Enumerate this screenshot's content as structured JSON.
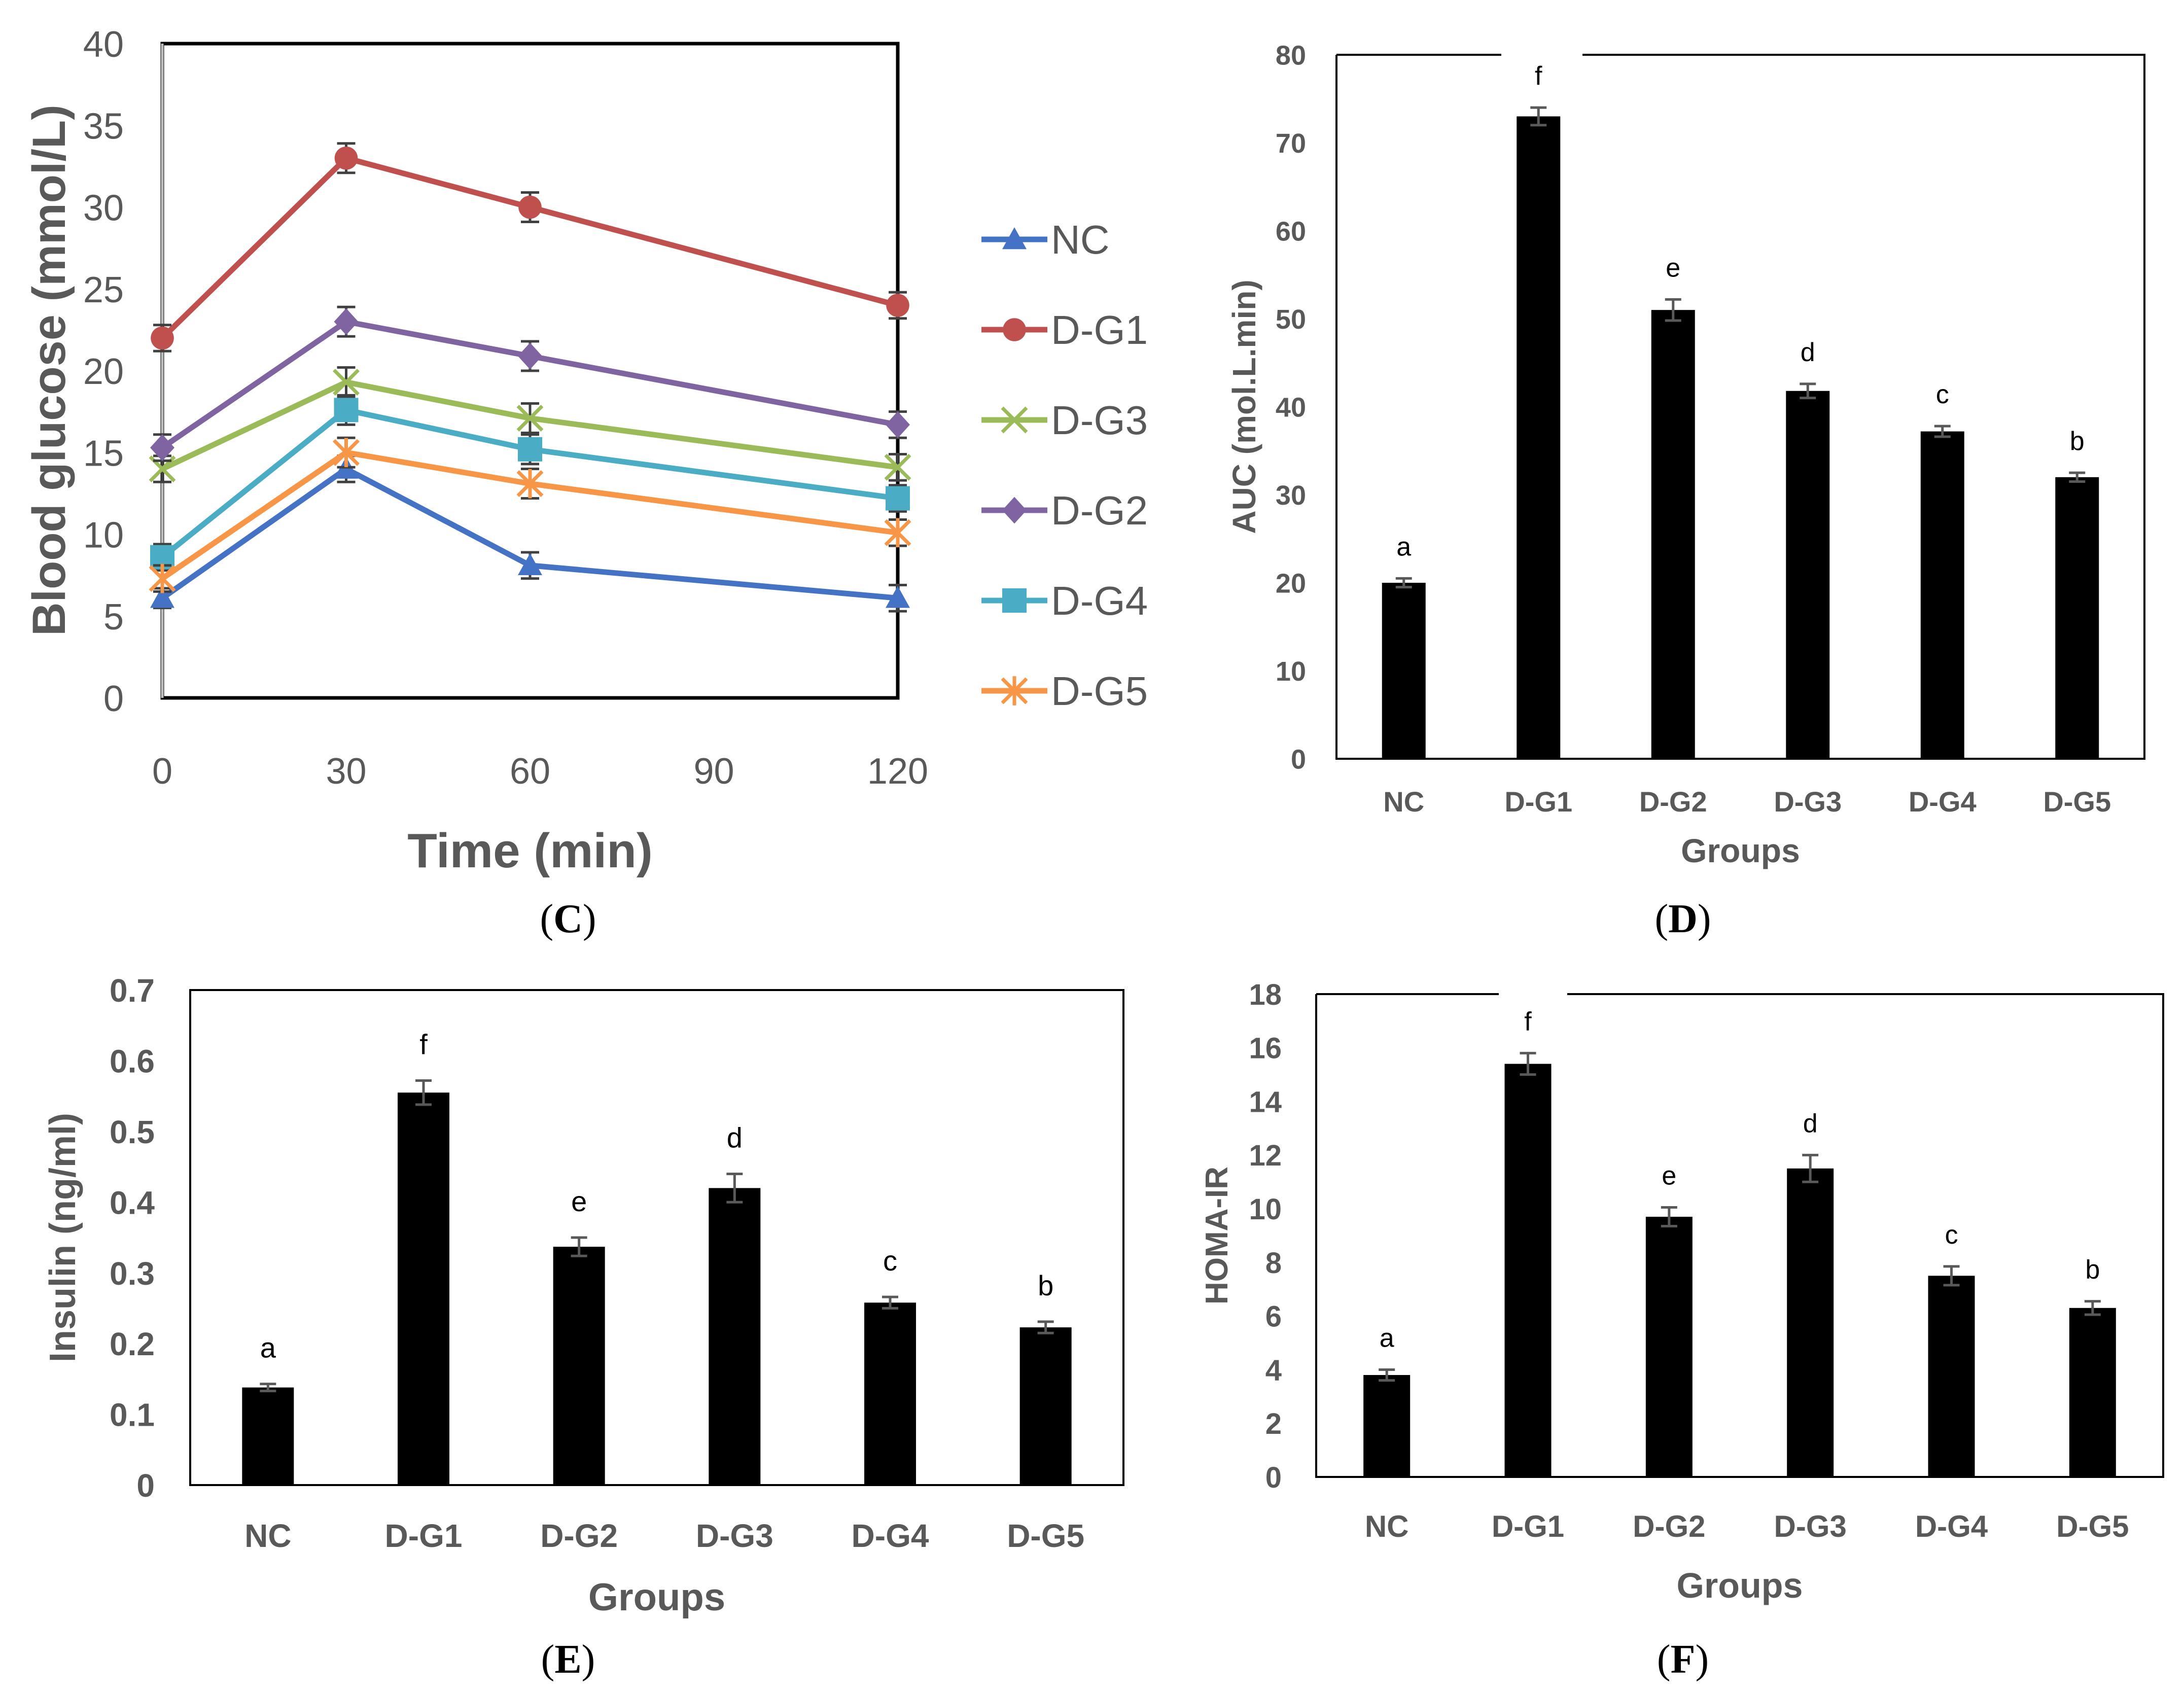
{
  "chart_data": [
    {
      "panel": "C",
      "type": "line",
      "ylabel": "Blood glucose (mmol/L)",
      "xlabel": "Time (min)",
      "x_ticks": [
        0,
        30,
        60,
        90,
        120
      ],
      "y_ticks": [
        0,
        5,
        10,
        15,
        20,
        25,
        30,
        35,
        40
      ],
      "ylim": [
        0,
        40
      ],
      "xlim": [
        0,
        120
      ],
      "x": [
        0,
        30,
        60,
        120
      ],
      "series": [
        {
          "name": "NC",
          "color": "#4472C4",
          "marker": "triangle",
          "values": [
            6.1,
            14.0,
            8.1,
            6.1
          ],
          "errors": [
            0.6,
            0.8,
            0.8,
            0.8
          ]
        },
        {
          "name": "D-G1",
          "color": "#C0504D",
          "marker": "circle",
          "values": [
            22.0,
            33.0,
            30.0,
            24.0
          ],
          "errors": [
            0.8,
            0.9,
            0.9,
            0.8
          ]
        },
        {
          "name": "D-G3",
          "color": "#9BBB59",
          "marker": "x",
          "values": [
            14.0,
            19.3,
            17.1,
            14.1
          ],
          "errors": [
            0.8,
            0.9,
            0.9,
            0.8
          ]
        },
        {
          "name": "D-G2",
          "color": "#8064A2",
          "marker": "diamond",
          "values": [
            15.3,
            23.0,
            20.9,
            16.7
          ],
          "errors": [
            0.8,
            0.9,
            0.9,
            0.8
          ]
        },
        {
          "name": "D-G4",
          "color": "#4BACC6",
          "marker": "square",
          "values": [
            8.6,
            17.6,
            15.2,
            12.2
          ],
          "errors": [
            0.8,
            0.9,
            0.9,
            0.8
          ]
        },
        {
          "name": "D-G5",
          "color": "#F79646",
          "marker": "asterisk",
          "values": [
            7.3,
            15.0,
            13.1,
            10.1
          ],
          "errors": [
            0.8,
            0.9,
            0.9,
            0.8
          ]
        }
      ]
    },
    {
      "panel": "D",
      "type": "bar",
      "ylabel": "AUC (mol.L.min)",
      "xlabel": "Groups",
      "categories": [
        "NC",
        "D-G1",
        "D-G2",
        "D-G3",
        "D-G4",
        "D-G5"
      ],
      "values": [
        20.0,
        73.0,
        51.0,
        41.8,
        37.2,
        32.0
      ],
      "errors": [
        0.5,
        1.0,
        1.2,
        0.8,
        0.6,
        0.5
      ],
      "letters": [
        "a",
        "f",
        "e",
        "d",
        "c",
        "b"
      ],
      "y_ticks": [
        0,
        10,
        20,
        30,
        40,
        50,
        60,
        70,
        80
      ],
      "ylim": [
        0,
        80
      ]
    },
    {
      "panel": "E",
      "type": "bar",
      "ylabel": "Insulin (ng/ml)",
      "xlabel": "Groups",
      "categories": [
        "NC",
        "D-G1",
        "D-G2",
        "D-G3",
        "D-G4",
        "D-G5"
      ],
      "values": [
        0.138,
        0.555,
        0.337,
        0.42,
        0.258,
        0.223
      ],
      "errors": [
        0.005,
        0.017,
        0.013,
        0.02,
        0.008,
        0.008
      ],
      "letters": [
        "a",
        "f",
        "e",
        "d",
        "c",
        "b"
      ],
      "y_ticks": [
        "0",
        "0.1",
        "0.2",
        "0.3",
        "0.4",
        "0.5",
        "0.6",
        "0.7"
      ],
      "ylim": [
        0,
        0.7
      ]
    },
    {
      "panel": "F",
      "type": "bar",
      "ylabel": "HOMA-IR",
      "xlabel": "Groups",
      "categories": [
        "NC",
        "D-G1",
        "D-G2",
        "D-G3",
        "D-G4",
        "D-G5"
      ],
      "values": [
        3.8,
        15.4,
        9.7,
        11.5,
        7.5,
        6.3
      ],
      "errors": [
        0.2,
        0.4,
        0.35,
        0.5,
        0.35,
        0.25
      ],
      "letters": [
        "a",
        "f",
        "e",
        "d",
        "c",
        "b"
      ],
      "y_ticks": [
        0,
        2,
        4,
        6,
        8,
        10,
        12,
        14,
        16,
        18
      ],
      "ylim": [
        0,
        18
      ]
    }
  ],
  "panel_labels": [
    "C",
    "D",
    "E",
    "F"
  ]
}
